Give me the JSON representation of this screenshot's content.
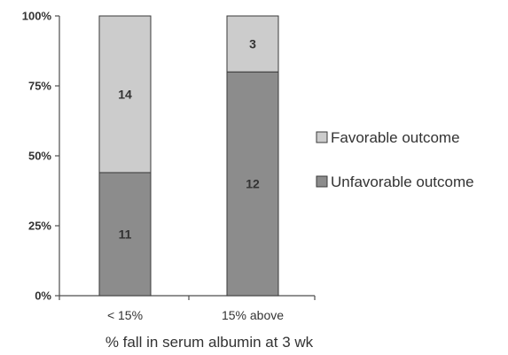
{
  "chart_data": {
    "type": "bar",
    "stacked": true,
    "normalized_percent": true,
    "categories": [
      "< 15%",
      "15% above"
    ],
    "series": [
      {
        "name": "Unfavorable outcome",
        "counts": [
          11,
          12
        ],
        "values_percent": [
          44,
          80
        ],
        "color": "#8c8c8c"
      },
      {
        "name": "Favorable outcome",
        "counts": [
          14,
          3
        ],
        "values_percent": [
          56,
          20
        ],
        "color": "#cccccc"
      }
    ],
    "title": "",
    "xlabel": "% fall in serum albumin at 3 wk",
    "ylabel": "",
    "ylim": [
      0,
      100
    ],
    "yticks": [
      "0%",
      "25%",
      "50%",
      "75%",
      "100%"
    ],
    "grid": false,
    "legend_position": "right",
    "legend_order": [
      "Favorable outcome",
      "Unfavorable outcome"
    ]
  }
}
